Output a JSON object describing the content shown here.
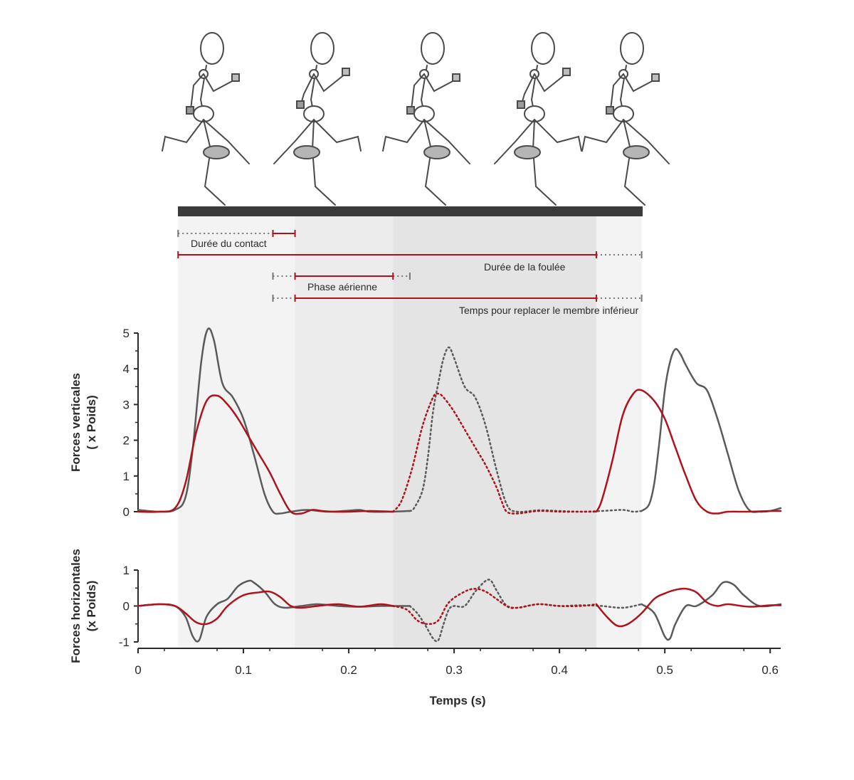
{
  "chart_data": {
    "type": "line",
    "xlabel": "Temps (s)",
    "xlim": [
      0,
      0.61
    ],
    "x_ticks": [
      "0",
      "0.1",
      "0.2",
      "0.3",
      "0.4",
      "0.5",
      "0.6"
    ],
    "x_tick_values": [
      0,
      0.1,
      0.2,
      0.3,
      0.4,
      0.5,
      0.6
    ],
    "phases": [
      {
        "start": 0.038,
        "end": 0.149,
        "shade": "#f3f3f3"
      },
      {
        "start": 0.149,
        "end": 0.242,
        "shade": "#ececec"
      },
      {
        "start": 0.242,
        "end": 0.435,
        "shade": "#e4e4e4"
      },
      {
        "start": 0.435,
        "end": 0.478,
        "shade": "#f3f3f3"
      }
    ],
    "annotations": [
      {
        "label": "Durée du contact",
        "start": 0.038,
        "solid_start": 0.128,
        "end": 0.149,
        "solid_end": 0.149
      },
      {
        "label": "Durée de la foulée",
        "start": 0.038,
        "solid_start": 0.038,
        "solid_end": 0.435,
        "end": 0.478
      },
      {
        "label": "Phase aérienne",
        "start": 0.128,
        "solid_start": 0.149,
        "solid_end": 0.242,
        "end": 0.258
      },
      {
        "label": "Temps pour replacer le membre inférieur",
        "start": 0.128,
        "solid_start": 0.149,
        "solid_end": 0.435,
        "end": 0.478
      }
    ],
    "panels": [
      {
        "ylabel": [
          "Forces verticales",
          "( x Poids)"
        ],
        "ylim": [
          0,
          5
        ],
        "y_ticks": [
          "0",
          "1",
          "2",
          "3",
          "4",
          "5"
        ],
        "y_tick_values": [
          0,
          1,
          2,
          3,
          4,
          5
        ],
        "series": [
          {
            "color": "#5a5a5a",
            "dotted_range": [
              0.258,
              0.478
            ],
            "x": [
              0,
              0.02,
              0.035,
              0.045,
              0.052,
              0.06,
              0.066,
              0.072,
              0.08,
              0.09,
              0.1,
              0.11,
              0.12,
              0.128,
              0.135,
              0.145,
              0.16,
              0.18,
              0.2,
              0.21,
              0.22,
              0.24,
              0.258,
              0.262,
              0.27,
              0.275,
              0.28,
              0.285,
              0.29,
              0.295,
              0.3,
              0.31,
              0.32,
              0.33,
              0.34,
              0.35,
              0.36,
              0.38,
              0.4,
              0.42,
              0.44,
              0.46,
              0.47,
              0.478,
              0.485,
              0.49,
              0.495,
              0.5,
              0.505,
              0.51,
              0.515,
              0.52,
              0.53,
              0.54,
              0.55,
              0.56,
              0.57,
              0.58,
              0.59,
              0.6,
              0.61
            ],
            "y": [
              0.05,
              0,
              0.05,
              0.4,
              1.8,
              4.2,
              5.1,
              4.8,
              3.6,
              3.2,
              2.6,
              1.6,
              0.5,
              0,
              -0.05,
              0,
              0.05,
              0,
              0.03,
              0.05,
              0,
              0,
              0.02,
              0.1,
              0.6,
              1.5,
              2.8,
              3.6,
              4.3,
              4.6,
              4.3,
              3.5,
              3.2,
              2.4,
              1.2,
              0.2,
              0,
              0.04,
              0.02,
              0,
              0.02,
              0.05,
              0,
              0.02,
              0.2,
              0.8,
              2,
              3.4,
              4.2,
              4.55,
              4.4,
              4.1,
              3.6,
              3.4,
              2.6,
              1.6,
              0.6,
              0.05,
              0,
              0.02,
              0.1
            ]
          },
          {
            "color": "#b0121b",
            "dotted_range": [
              0.242,
              0.435
            ],
            "x": [
              0,
              0.02,
              0.035,
              0.045,
              0.055,
              0.065,
              0.075,
              0.085,
              0.095,
              0.105,
              0.115,
              0.125,
              0.135,
              0.145,
              0.155,
              0.165,
              0.175,
              0.185,
              0.2,
              0.22,
              0.242,
              0.25,
              0.26,
              0.27,
              0.28,
              0.285,
              0.29,
              0.3,
              0.31,
              0.32,
              0.33,
              0.34,
              0.345,
              0.35,
              0.36,
              0.38,
              0.4,
              0.42,
              0.435,
              0.44,
              0.45,
              0.46,
              0.47,
              0.478,
              0.49,
              0.5,
              0.51,
              0.52,
              0.53,
              0.54,
              0.55,
              0.56,
              0.58,
              0.6,
              0.61
            ],
            "y": [
              0,
              0,
              0.1,
              0.8,
              2.2,
              3.1,
              3.25,
              3.0,
              2.6,
              2.1,
              1.6,
              1.1,
              0.5,
              0,
              -0.05,
              0.05,
              0.02,
              0,
              0,
              0.02,
              0,
              0.3,
              1.2,
              2.4,
              3.2,
              3.3,
              3.2,
              2.8,
              2.3,
              1.8,
              1.3,
              0.7,
              0.3,
              0,
              -0.05,
              0.02,
              0,
              0,
              0,
              0.3,
              1.4,
              2.7,
              3.3,
              3.4,
              3.1,
              2.6,
              1.8,
              1.0,
              0.3,
              0,
              -0.05,
              0,
              0,
              0.02,
              0.02
            ]
          }
        ]
      },
      {
        "ylabel": [
          "Forces horizontales",
          "(x Poids)"
        ],
        "ylim": [
          -1,
          1
        ],
        "y_ticks": [
          "-1",
          "0",
          "1"
        ],
        "y_tick_values": [
          -1,
          0,
          1
        ],
        "series": [
          {
            "color": "#5a5a5a",
            "dotted_range": [
              0.258,
              0.478
            ],
            "x": [
              0,
              0.02,
              0.035,
              0.045,
              0.052,
              0.058,
              0.065,
              0.075,
              0.085,
              0.095,
              0.105,
              0.11,
              0.12,
              0.13,
              0.14,
              0.155,
              0.17,
              0.19,
              0.21,
              0.23,
              0.25,
              0.258,
              0.265,
              0.272,
              0.28,
              0.285,
              0.29,
              0.295,
              0.3,
              0.31,
              0.32,
              0.33,
              0.335,
              0.34,
              0.35,
              0.36,
              0.38,
              0.4,
              0.42,
              0.44,
              0.46,
              0.478,
              0.49,
              0.5,
              0.505,
              0.51,
              0.52,
              0.53,
              0.545,
              0.555,
              0.565,
              0.575,
              0.59,
              0.61
            ],
            "y": [
              0,
              0.05,
              0,
              -0.3,
              -0.85,
              -0.95,
              -0.3,
              0.05,
              0.2,
              0.55,
              0.7,
              0.65,
              0.4,
              0.05,
              -0.05,
              0,
              0.05,
              0,
              -0.02,
              0,
              0,
              0,
              -0.2,
              -0.5,
              -0.9,
              -0.95,
              -0.5,
              -0.1,
              0,
              0,
              0.4,
              0.7,
              0.7,
              0.45,
              0,
              -0.05,
              0.05,
              0,
              0.02,
              0,
              -0.05,
              0.05,
              -0.2,
              -0.85,
              -0.9,
              -0.5,
              0,
              0,
              0.3,
              0.65,
              0.6,
              0.3,
              0,
              0.05
            ]
          },
          {
            "color": "#b0121b",
            "dotted_range": [
              0.242,
              0.435
            ],
            "x": [
              0,
              0.02,
              0.035,
              0.045,
              0.055,
              0.065,
              0.075,
              0.085,
              0.1,
              0.115,
              0.125,
              0.135,
              0.145,
              0.155,
              0.17,
              0.19,
              0.21,
              0.23,
              0.242,
              0.255,
              0.265,
              0.275,
              0.285,
              0.295,
              0.31,
              0.32,
              0.33,
              0.34,
              0.35,
              0.36,
              0.38,
              0.4,
              0.42,
              0.435,
              0.445,
              0.455,
              0.465,
              0.478,
              0.49,
              0.5,
              0.51,
              0.52,
              0.53,
              0.54,
              0.55,
              0.56,
              0.58,
              0.6,
              0.61
            ],
            "y": [
              0,
              0.05,
              0,
              -0.2,
              -0.45,
              -0.5,
              -0.35,
              0,
              0.3,
              0.38,
              0.4,
              0.25,
              0,
              -0.05,
              0,
              0.05,
              -0.02,
              0.05,
              0,
              -0.1,
              -0.4,
              -0.5,
              -0.4,
              0.1,
              0.4,
              0.48,
              0.4,
              0.2,
              0,
              -0.05,
              0.05,
              0,
              0,
              0.05,
              -0.3,
              -0.55,
              -0.5,
              -0.2,
              0.2,
              0.35,
              0.45,
              0.48,
              0.38,
              0.1,
              0,
              0.05,
              -0.02,
              0.02,
              0.02
            ]
          }
        ]
      }
    ],
    "runner_figures": 5
  }
}
